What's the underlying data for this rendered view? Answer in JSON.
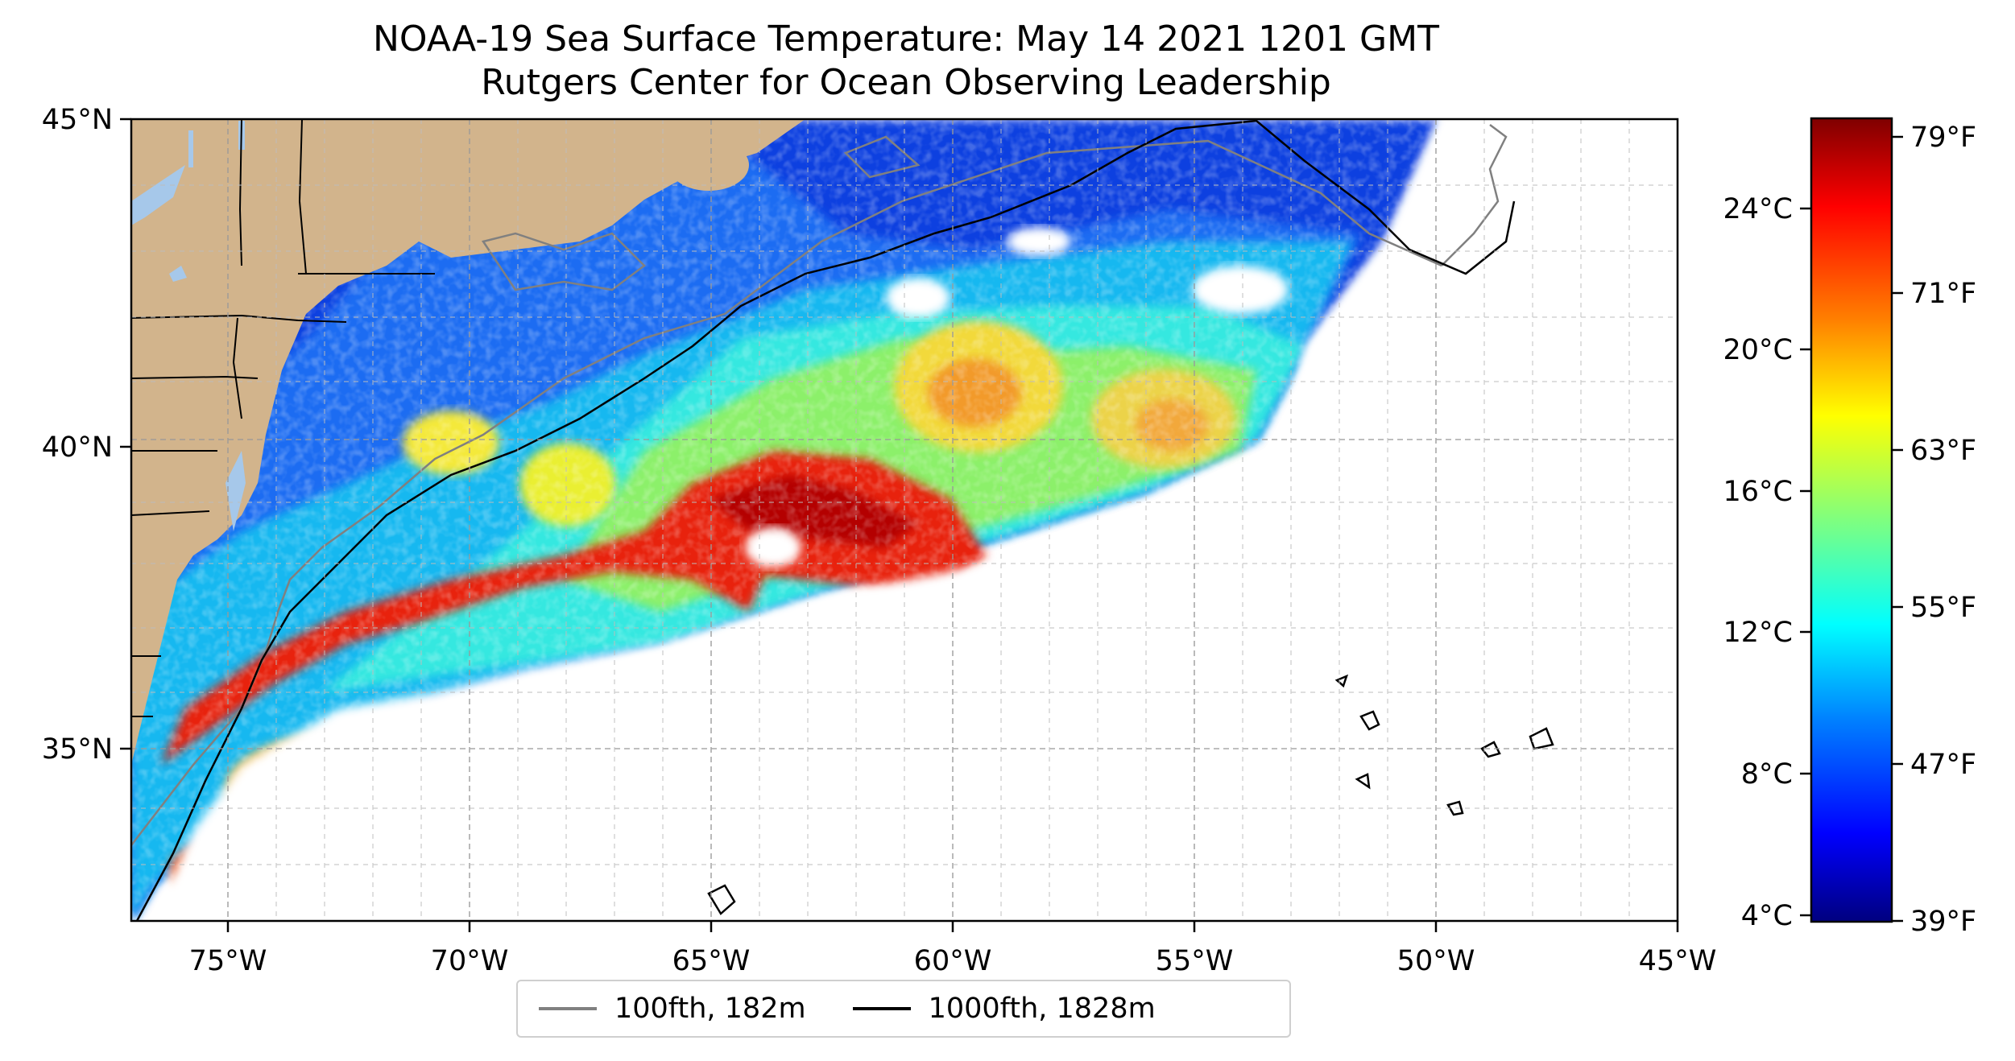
{
  "title": {
    "line1": "NOAA-19 Sea Surface Temperature: May 14 2021 1201 GMT",
    "line2": "Rutgers Center for Ocean Observing Leadership"
  },
  "map": {
    "region_lon": [
      -77,
      -45
    ],
    "region_lat": [
      32.5,
      45
    ],
    "lon_ticks": [
      "75°W",
      "70°W",
      "65°W",
      "60°W",
      "55°W",
      "50°W",
      "45°W"
    ],
    "lat_ticks": [
      "45°N",
      "40°N",
      "35°N"
    ],
    "gridlines": "dashed",
    "land_color": "#d2b48c",
    "lake_color": "#a6c8ea"
  },
  "colorbar": {
    "colormap": "jet",
    "celsius_ticks": [
      "24°C",
      "20°C",
      "16°C",
      "12°C",
      "8°C",
      "4°C"
    ],
    "fahrenheit_ticks": [
      "79°F",
      "71°F",
      "63°F",
      "55°F",
      "47°F",
      "39°F"
    ],
    "colors": [
      "#00007f",
      "#0000ff",
      "#007fff",
      "#00ffff",
      "#7fff7f",
      "#ffff00",
      "#ff7f00",
      "#ff0000",
      "#7f0000"
    ]
  },
  "legend": {
    "items": [
      {
        "label": "100fth, 182m",
        "color": "#808080"
      },
      {
        "label": "1000fth, 1828m",
        "color": "#000000"
      }
    ]
  }
}
